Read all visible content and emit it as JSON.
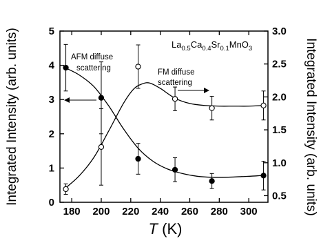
{
  "chart_data": {
    "type": "scatter",
    "formula": {
      "p1": "La",
      "s1": "0.5",
      "p2": "Ca",
      "s2": "0.4",
      "p3": "Sr",
      "s3": "0.1",
      "p4": "MnO",
      "s4": "3"
    },
    "xlabel": {
      "italic": "T",
      "rest": " (K)"
    },
    "ylabel_left": "Integrated Intensity (arb. units)",
    "ylabel_right": "Integrated Intensity (arb. units)",
    "xlim": [
      172,
      313
    ],
    "ylim_left": [
      0,
      5
    ],
    "ylim_right": [
      0.4,
      3.0
    ],
    "x_ticks": [
      180,
      200,
      220,
      240,
      260,
      280,
      300
    ],
    "y_left_ticks": [
      0,
      1,
      2,
      3,
      4,
      5
    ],
    "y_right_ticks": [
      "0.5",
      "1.0",
      "1.5",
      "2.0",
      "2.5",
      "3.0"
    ],
    "y_right_tick_values": [
      0.5,
      1.0,
      1.5,
      2.0,
      2.5,
      3.0
    ],
    "annotations": {
      "afm_line1": "AFM diffuse",
      "afm_line2": "scattering",
      "fm_line1": "FM diffuse",
      "fm_line2": "scattering"
    },
    "series": [
      {
        "name": "AFM diffuse scattering",
        "axis": "left",
        "marker": "filled-circle",
        "x": [
          176,
          200,
          225,
          250,
          275,
          310
        ],
        "y": [
          3.93,
          3.05,
          1.27,
          0.95,
          0.62,
          0.78
        ],
        "err": [
          0.68,
          1.05,
          0.45,
          0.35,
          0.22,
          0.42
        ]
      },
      {
        "name": "FM diffuse scattering",
        "axis": "right",
        "marker": "open-circle",
        "x": [
          176,
          200,
          225,
          250,
          275,
          310
        ],
        "y": [
          0.6,
          1.24,
          2.46,
          1.97,
          1.83,
          1.87
        ],
        "err": [
          0.08,
          0.58,
          0.33,
          0.18,
          0.18,
          0.22
        ]
      }
    ],
    "fit_curves": [
      {
        "axis": "left",
        "x": [
          176,
          185,
          195,
          205,
          215,
          225,
          235,
          245,
          255,
          265,
          275,
          285,
          295,
          305,
          310
        ],
        "y": [
          3.92,
          3.72,
          3.38,
          2.82,
          2.15,
          1.58,
          1.2,
          0.97,
          0.84,
          0.76,
          0.73,
          0.73,
          0.75,
          0.77,
          0.79
        ]
      },
      {
        "axis": "right",
        "x": [
          176,
          185,
          195,
          205,
          215,
          222,
          228,
          233,
          240,
          250,
          260,
          270,
          280,
          290,
          300,
          310
        ],
        "y": [
          0.62,
          0.8,
          1.08,
          1.48,
          1.9,
          2.12,
          2.2,
          2.21,
          2.13,
          1.98,
          1.9,
          1.87,
          1.86,
          1.86,
          1.86,
          1.87
        ]
      }
    ]
  }
}
